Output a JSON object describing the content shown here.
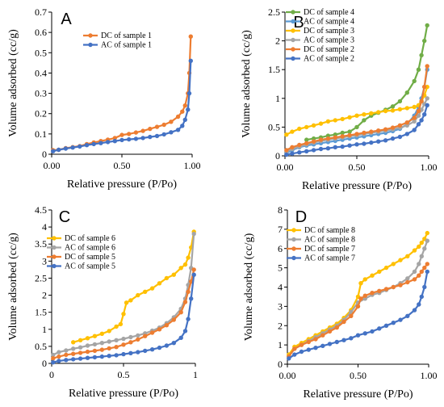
{
  "figure": {
    "panels": [
      "A",
      "B",
      "C",
      "D"
    ]
  },
  "chart_data": [
    {
      "panel": "A",
      "type": "line",
      "xlabel": "Relative pressure (P/Po)",
      "ylabel": "Volume adsorbed (cc/g)",
      "xlim": [
        0,
        1.0
      ],
      "ylim": [
        0,
        0.7
      ],
      "xticks": [
        "0.00",
        "0.50",
        "1.00"
      ],
      "yticks": [
        "0",
        "0.1",
        "0.2",
        "0.3",
        "0.4",
        "0.5",
        "0.6",
        "0.7"
      ],
      "legend_position": "top-left",
      "series": [
        {
          "name": "DC of sample 1",
          "color": "#ED7D31",
          "x": [
            0.01,
            0.05,
            0.1,
            0.15,
            0.2,
            0.25,
            0.3,
            0.35,
            0.4,
            0.45,
            0.5,
            0.55,
            0.6,
            0.65,
            0.7,
            0.75,
            0.8,
            0.85,
            0.9,
            0.93,
            0.95,
            0.97,
            0.98,
            0.99
          ],
          "y": [
            0.02,
            0.022,
            0.03,
            0.035,
            0.04,
            0.05,
            0.058,
            0.065,
            0.072,
            0.08,
            0.095,
            0.1,
            0.107,
            0.115,
            0.125,
            0.135,
            0.145,
            0.16,
            0.185,
            0.21,
            0.24,
            0.3,
            0.4,
            0.58
          ]
        },
        {
          "name": "AC of sample 1",
          "color": "#4472C4",
          "x": [
            0.01,
            0.05,
            0.1,
            0.15,
            0.2,
            0.25,
            0.3,
            0.35,
            0.4,
            0.45,
            0.5,
            0.55,
            0.6,
            0.65,
            0.7,
            0.75,
            0.8,
            0.85,
            0.9,
            0.93,
            0.95,
            0.97,
            0.98,
            0.99
          ],
          "y": [
            0.015,
            0.022,
            0.028,
            0.033,
            0.038,
            0.045,
            0.05,
            0.055,
            0.06,
            0.065,
            0.07,
            0.073,
            0.076,
            0.08,
            0.085,
            0.09,
            0.098,
            0.108,
            0.12,
            0.14,
            0.17,
            0.22,
            0.3,
            0.46
          ]
        }
      ]
    },
    {
      "panel": "B",
      "type": "line",
      "xlabel": "Relative pressure (P/Po)",
      "ylabel": "Volume adsorbed (cc/g)",
      "xlim": [
        0,
        1.0
      ],
      "ylim": [
        0,
        2.5
      ],
      "xticks": [
        "0.00",
        "0.50",
        "1.00"
      ],
      "yticks": [
        "0",
        "0.5",
        "1",
        "1.5",
        "2",
        "2.5"
      ],
      "legend_position": "top-left",
      "series": [
        {
          "name": "DC of sample 4",
          "color": "#70AD47",
          "x": [
            0.15,
            0.2,
            0.25,
            0.3,
            0.35,
            0.4,
            0.45,
            0.5,
            0.55,
            0.6,
            0.65,
            0.7,
            0.75,
            0.8,
            0.85,
            0.9,
            0.93,
            0.95,
            0.97,
            0.99
          ],
          "y": [
            0.28,
            0.3,
            0.32,
            0.35,
            0.37,
            0.4,
            0.42,
            0.5,
            0.62,
            0.7,
            0.75,
            0.8,
            0.86,
            0.95,
            1.1,
            1.3,
            1.5,
            1.75,
            2.0,
            2.27
          ]
        },
        {
          "name": "AC of sample 4",
          "color": "#5B9BD5",
          "x": [
            0.01,
            0.05,
            0.1,
            0.15,
            0.2,
            0.25,
            0.3,
            0.35,
            0.4,
            0.45,
            0.5,
            0.55,
            0.6,
            0.65,
            0.7,
            0.75,
            0.8,
            0.85,
            0.9,
            0.93,
            0.95,
            0.97,
            0.99
          ],
          "y": [
            0.05,
            0.1,
            0.15,
            0.18,
            0.2,
            0.22,
            0.24,
            0.26,
            0.28,
            0.3,
            0.32,
            0.34,
            0.36,
            0.38,
            0.4,
            0.43,
            0.47,
            0.55,
            0.7,
            0.85,
            1.0,
            1.2,
            1.5
          ]
        },
        {
          "name": "DC of sample 3",
          "color": "#FFC000",
          "x": [
            0.01,
            0.05,
            0.1,
            0.15,
            0.2,
            0.25,
            0.3,
            0.35,
            0.4,
            0.45,
            0.5,
            0.55,
            0.6,
            0.65,
            0.7,
            0.75,
            0.8,
            0.85,
            0.9,
            0.93,
            0.95,
            0.97,
            0.99
          ],
          "y": [
            0.37,
            0.42,
            0.47,
            0.5,
            0.53,
            0.56,
            0.6,
            0.62,
            0.64,
            0.67,
            0.7,
            0.72,
            0.74,
            0.76,
            0.78,
            0.79,
            0.81,
            0.83,
            0.85,
            0.88,
            0.95,
            1.05,
            1.2
          ]
        },
        {
          "name": "AC of sample 3",
          "color": "#A5A5A5",
          "x": [
            0.01,
            0.05,
            0.1,
            0.15,
            0.2,
            0.25,
            0.3,
            0.35,
            0.4,
            0.45,
            0.5,
            0.55,
            0.6,
            0.65,
            0.7,
            0.75,
            0.8,
            0.85,
            0.9,
            0.93,
            0.95,
            0.97,
            0.99
          ],
          "y": [
            0.07,
            0.12,
            0.16,
            0.2,
            0.23,
            0.26,
            0.28,
            0.3,
            0.32,
            0.34,
            0.36,
            0.38,
            0.4,
            0.42,
            0.44,
            0.46,
            0.49,
            0.53,
            0.6,
            0.7,
            0.8,
            0.9,
            1.0
          ]
        },
        {
          "name": "DC of sample 2",
          "color": "#ED7D31",
          "x": [
            0.01,
            0.05,
            0.1,
            0.15,
            0.2,
            0.25,
            0.3,
            0.35,
            0.4,
            0.45,
            0.5,
            0.55,
            0.6,
            0.65,
            0.7,
            0.75,
            0.8,
            0.85,
            0.9,
            0.93,
            0.95,
            0.97,
            0.99
          ],
          "y": [
            0.1,
            0.15,
            0.19,
            0.22,
            0.25,
            0.28,
            0.3,
            0.32,
            0.34,
            0.36,
            0.38,
            0.4,
            0.42,
            0.44,
            0.46,
            0.49,
            0.53,
            0.58,
            0.66,
            0.78,
            0.95,
            1.2,
            1.56
          ]
        },
        {
          "name": "AC of sample 2",
          "color": "#4472C4",
          "x": [
            0.01,
            0.05,
            0.1,
            0.15,
            0.2,
            0.25,
            0.3,
            0.35,
            0.4,
            0.45,
            0.5,
            0.55,
            0.6,
            0.65,
            0.7,
            0.75,
            0.8,
            0.85,
            0.9,
            0.93,
            0.95,
            0.97,
            0.99
          ],
          "y": [
            0.02,
            0.04,
            0.06,
            0.08,
            0.1,
            0.12,
            0.13,
            0.15,
            0.16,
            0.18,
            0.2,
            0.21,
            0.23,
            0.25,
            0.27,
            0.3,
            0.33,
            0.38,
            0.45,
            0.55,
            0.62,
            0.72,
            0.88
          ]
        }
      ]
    },
    {
      "panel": "C",
      "type": "line",
      "xlabel": "Relative pressure (P/Po)",
      "ylabel": "Volume adsorbed (cc/g)",
      "xlim": [
        0,
        1.0
      ],
      "ylim": [
        0,
        4.5
      ],
      "xticks": [
        "0",
        "0.5",
        "1"
      ],
      "yticks": [
        "0",
        "0.5",
        "1",
        "1.5",
        "2",
        "2.5",
        "3",
        "3.5",
        "4",
        "4.5"
      ],
      "legend_position": "top-left",
      "series": [
        {
          "name": "DC of sample 6",
          "color": "#FFC000",
          "x": [
            0.15,
            0.2,
            0.25,
            0.3,
            0.35,
            0.4,
            0.45,
            0.48,
            0.5,
            0.52,
            0.55,
            0.6,
            0.65,
            0.7,
            0.75,
            0.8,
            0.85,
            0.9,
            0.93,
            0.95,
            0.97,
            0.99
          ],
          "y": [
            0.62,
            0.68,
            0.74,
            0.8,
            0.87,
            0.95,
            1.08,
            1.15,
            1.45,
            1.78,
            1.85,
            2.0,
            2.1,
            2.2,
            2.35,
            2.5,
            2.6,
            2.8,
            2.9,
            3.1,
            3.4,
            3.86
          ]
        },
        {
          "name": "AC of sample 6",
          "color": "#A5A5A5",
          "x": [
            0.01,
            0.05,
            0.1,
            0.15,
            0.2,
            0.25,
            0.3,
            0.35,
            0.4,
            0.45,
            0.5,
            0.55,
            0.6,
            0.65,
            0.7,
            0.75,
            0.8,
            0.85,
            0.9,
            0.93,
            0.95,
            0.97,
            0.99
          ],
          "y": [
            0.25,
            0.33,
            0.38,
            0.43,
            0.47,
            0.52,
            0.56,
            0.6,
            0.64,
            0.68,
            0.72,
            0.77,
            0.82,
            0.88,
            0.96,
            1.05,
            1.18,
            1.35,
            1.6,
            1.9,
            2.3,
            2.8,
            3.8
          ]
        },
        {
          "name": "DC of sample 5",
          "color": "#ED7D31",
          "x": [
            0.01,
            0.05,
            0.1,
            0.15,
            0.2,
            0.25,
            0.3,
            0.35,
            0.4,
            0.45,
            0.5,
            0.55,
            0.6,
            0.65,
            0.7,
            0.75,
            0.8,
            0.85,
            0.9,
            0.93,
            0.95,
            0.97,
            0.99
          ],
          "y": [
            0.15,
            0.2,
            0.25,
            0.28,
            0.31,
            0.34,
            0.37,
            0.4,
            0.44,
            0.48,
            0.55,
            0.62,
            0.7,
            0.8,
            0.9,
            1.0,
            1.12,
            1.28,
            1.5,
            1.8,
            2.1,
            2.4,
            2.75
          ]
        },
        {
          "name": "AC of sample 5",
          "color": "#4472C4",
          "x": [
            0.01,
            0.05,
            0.1,
            0.15,
            0.2,
            0.25,
            0.3,
            0.35,
            0.4,
            0.45,
            0.5,
            0.55,
            0.6,
            0.65,
            0.7,
            0.75,
            0.8,
            0.85,
            0.9,
            0.93,
            0.95,
            0.97,
            0.99
          ],
          "y": [
            0.03,
            0.07,
            0.1,
            0.12,
            0.14,
            0.16,
            0.18,
            0.2,
            0.22,
            0.24,
            0.27,
            0.3,
            0.33,
            0.37,
            0.41,
            0.46,
            0.52,
            0.6,
            0.75,
            0.95,
            1.3,
            1.9,
            2.6
          ]
        }
      ]
    },
    {
      "panel": "D",
      "type": "line",
      "xlabel": "Relative pressure (P/Po)",
      "ylabel": "Volume adsorbed (cc/g)",
      "xlim": [
        0,
        1.0
      ],
      "ylim": [
        0,
        8
      ],
      "xticks": [
        "0.00",
        "0.50",
        "1.00"
      ],
      "yticks": [
        "0",
        "1",
        "2",
        "3",
        "4",
        "5",
        "6",
        "7",
        "8"
      ],
      "legend_position": "top-left",
      "series": [
        {
          "name": "DC of sample 8",
          "color": "#FFC000",
          "x": [
            0.01,
            0.05,
            0.1,
            0.15,
            0.2,
            0.25,
            0.3,
            0.35,
            0.4,
            0.45,
            0.5,
            0.52,
            0.55,
            0.6,
            0.65,
            0.7,
            0.75,
            0.8,
            0.85,
            0.9,
            0.93,
            0.95,
            0.97,
            0.99
          ],
          "y": [
            0.5,
            0.9,
            1.1,
            1.3,
            1.5,
            1.7,
            1.9,
            2.1,
            2.4,
            2.8,
            3.5,
            4.2,
            4.4,
            4.6,
            4.8,
            5.0,
            5.2,
            5.4,
            5.6,
            5.9,
            6.1,
            6.3,
            6.5,
            6.8
          ]
        },
        {
          "name": "AC of sample 8",
          "color": "#A5A5A5",
          "x": [
            0.01,
            0.05,
            0.1,
            0.15,
            0.2,
            0.25,
            0.3,
            0.35,
            0.4,
            0.45,
            0.5,
            0.55,
            0.6,
            0.65,
            0.7,
            0.75,
            0.8,
            0.85,
            0.9,
            0.93,
            0.95,
            0.97,
            0.99
          ],
          "y": [
            0.4,
            0.8,
            1.0,
            1.2,
            1.4,
            1.6,
            1.8,
            2.0,
            2.3,
            2.7,
            3.2,
            3.4,
            3.6,
            3.7,
            3.85,
            4.0,
            4.2,
            4.45,
            4.8,
            5.2,
            5.6,
            6.0,
            6.4
          ]
        },
        {
          "name": "DC of sample 7",
          "color": "#ED7D31",
          "x": [
            0.01,
            0.05,
            0.1,
            0.15,
            0.2,
            0.25,
            0.3,
            0.35,
            0.4,
            0.45,
            0.5,
            0.52,
            0.55,
            0.6,
            0.65,
            0.7,
            0.75,
            0.8,
            0.85,
            0.9,
            0.93,
            0.95,
            0.97,
            0.99
          ],
          "y": [
            0.4,
            0.8,
            1.0,
            1.15,
            1.3,
            1.5,
            1.7,
            1.9,
            2.2,
            2.5,
            3.0,
            3.4,
            3.55,
            3.7,
            3.8,
            3.9,
            4.0,
            4.1,
            4.25,
            4.4,
            4.6,
            4.8,
            5.0,
            5.2
          ]
        },
        {
          "name": "AC of sample 7",
          "color": "#4472C4",
          "x": [
            0.01,
            0.05,
            0.1,
            0.15,
            0.2,
            0.25,
            0.3,
            0.35,
            0.4,
            0.45,
            0.5,
            0.55,
            0.6,
            0.65,
            0.7,
            0.75,
            0.8,
            0.85,
            0.9,
            0.93,
            0.95,
            0.97,
            0.99
          ],
          "y": [
            0.3,
            0.5,
            0.65,
            0.75,
            0.85,
            0.95,
            1.05,
            1.15,
            1.25,
            1.35,
            1.5,
            1.6,
            1.7,
            1.85,
            2.0,
            2.15,
            2.3,
            2.5,
            2.8,
            3.1,
            3.5,
            4.0,
            4.8
          ]
        }
      ]
    }
  ]
}
